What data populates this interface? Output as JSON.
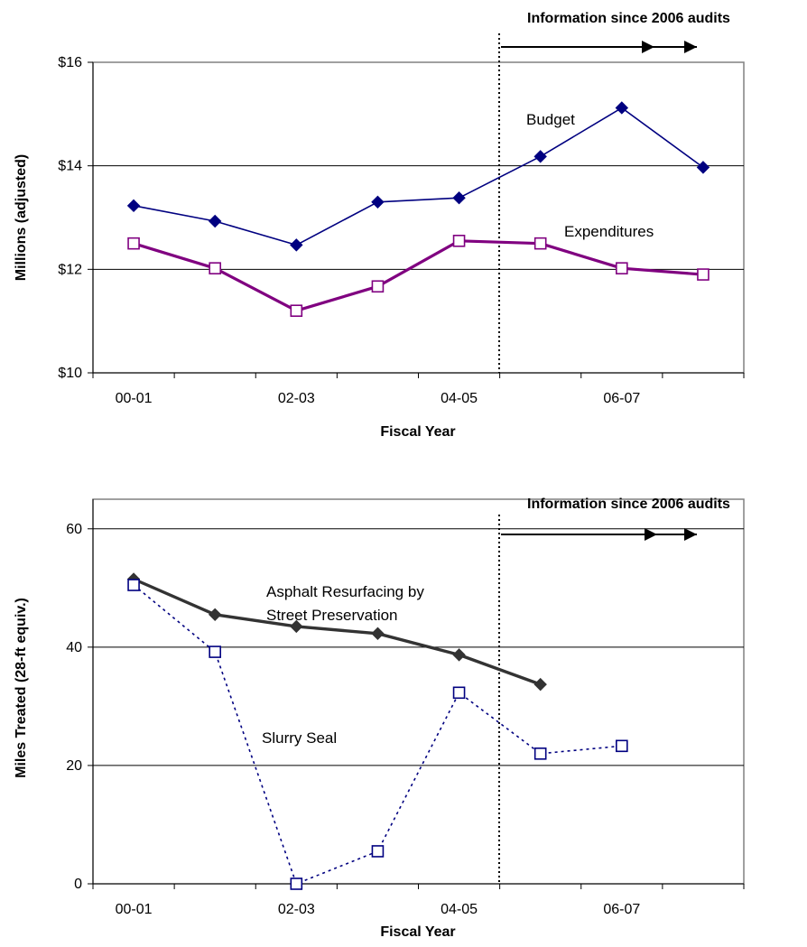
{
  "chart_data": [
    {
      "type": "line",
      "title": "",
      "xlabel": "Fiscal Year",
      "ylabel": "Millions (adjusted)",
      "x_tick_labels": [
        "00-01",
        "02-03",
        "04-05",
        "06-07"
      ],
      "y_tick_labels": [
        "$10",
        "$12",
        "$14",
        "$16"
      ],
      "ylim": [
        10,
        16
      ],
      "grid": true,
      "annotation": "Information since 2006 audits",
      "series": [
        {
          "name": "Budget",
          "color": "#000080",
          "marker": "filled-diamond",
          "values": [
            13.23,
            12.93,
            12.47,
            13.3,
            13.38,
            14.18,
            15.12,
            13.97
          ]
        },
        {
          "name": "Expenditures",
          "color": "#800080",
          "marker": "hollow-square",
          "values": [
            12.5,
            12.02,
            11.2,
            11.67,
            12.55,
            12.5,
            12.02,
            11.9
          ]
        }
      ]
    },
    {
      "type": "line",
      "title": "",
      "xlabel": "Fiscal Year",
      "ylabel": "Miles Treated (28-ft equiv.)",
      "x_tick_labels": [
        "00-01",
        "02-03",
        "04-05",
        "06-07"
      ],
      "y_tick_labels": [
        "0",
        "20",
        "40",
        "60"
      ],
      "ylim": [
        0,
        65
      ],
      "grid": true,
      "annotation": "Information since 2006 audits",
      "series": [
        {
          "name": "Asphalt Resurfacing by Street Preservation",
          "label_lines": [
            "Asphalt Resurfacing by",
            "Street Preservation"
          ],
          "color": "#333333",
          "marker": "filled-diamond",
          "values": [
            51.5,
            45.5,
            43.5,
            42.3,
            38.7,
            33.7,
            null,
            null
          ]
        },
        {
          "name": "Slurry Seal",
          "color": "#000080",
          "marker": "hollow-square",
          "values": [
            50.5,
            39.2,
            0,
            5.5,
            32.3,
            22,
            23.3,
            null
          ]
        }
      ]
    }
  ]
}
